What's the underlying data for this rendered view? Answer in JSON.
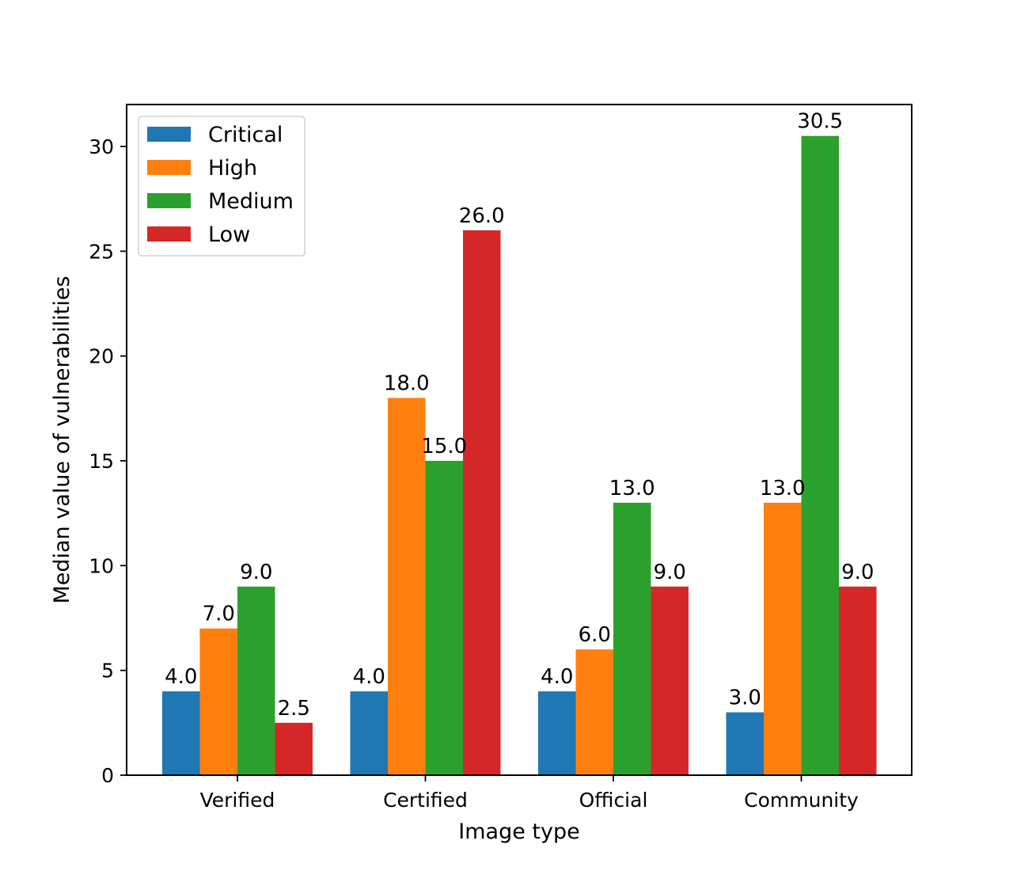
{
  "chart_data": {
    "type": "bar",
    "title": "",
    "xlabel": "Image type",
    "ylabel": "Median value of vulnerabilities",
    "categories": [
      "Verified",
      "Certified",
      "Official",
      "Community"
    ],
    "series": [
      {
        "name": "Critical",
        "color": "#1f77b4",
        "values": [
          4.0,
          4.0,
          4.0,
          3.0
        ]
      },
      {
        "name": "High",
        "color": "#ff7f0e",
        "values": [
          7.0,
          18.0,
          6.0,
          13.0
        ]
      },
      {
        "name": "Medium",
        "color": "#2ca02c",
        "values": [
          9.0,
          15.0,
          13.0,
          30.5
        ]
      },
      {
        "name": "Low",
        "color": "#d62728",
        "values": [
          2.5,
          26.0,
          9.0,
          9.0
        ]
      }
    ],
    "yticks": [
      0,
      5,
      10,
      15,
      20,
      25,
      30
    ],
    "ylim": [
      0,
      32
    ],
    "grid": false,
    "legend_position": "top-left",
    "value_label_decimals": 1
  }
}
